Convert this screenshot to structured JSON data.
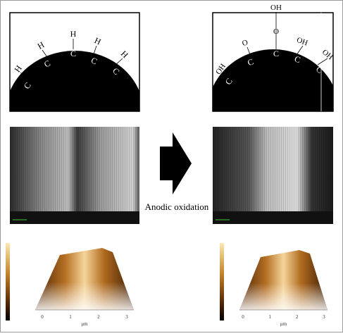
{
  "before_schematic": {
    "hydrogens": [
      "H",
      "H",
      "H",
      "H",
      "H"
    ],
    "carbons": [
      "C",
      "C",
      "C",
      "C",
      "C"
    ]
  },
  "after_schematic": {
    "groups": [
      "OH",
      "O",
      "OH",
      "OH",
      "OH"
    ],
    "bridge_oxygen": "O",
    "carbons": [
      "C",
      "C",
      "C",
      "C",
      "C"
    ]
  },
  "arrow_label": "Anodic oxidation",
  "before_afm": {
    "x_ticks": [
      "0",
      "1",
      "2",
      "3"
    ],
    "x_label": "μm"
  },
  "after_afm": {
    "x_ticks": [
      "0",
      "1",
      "2",
      "3"
    ],
    "x_label": "μm"
  }
}
